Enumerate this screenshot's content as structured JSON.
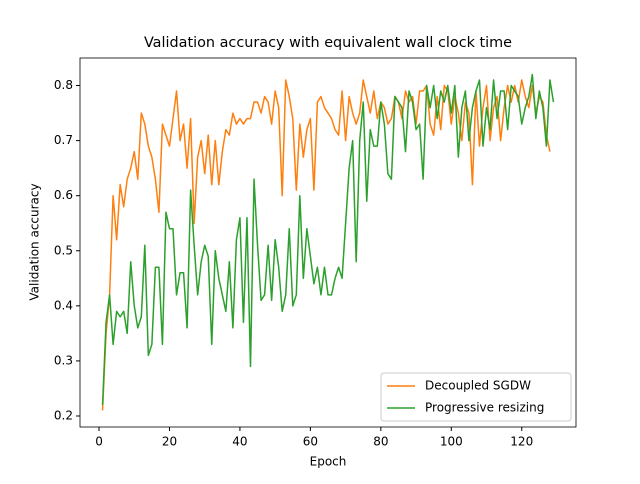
{
  "chart_data": {
    "type": "line",
    "title": "Validation accuracy with equivalent wall clock time",
    "x_label": "Epoch",
    "y_label": "Validation accuracy",
    "x": [
      1,
      2,
      3,
      4,
      5,
      6,
      7,
      8,
      9,
      10,
      11,
      12,
      13,
      14,
      15,
      16,
      17,
      18,
      19,
      20,
      21,
      22,
      23,
      24,
      25,
      26,
      27,
      28,
      29,
      30,
      31,
      32,
      33,
      34,
      35,
      36,
      37,
      38,
      39,
      40,
      41,
      42,
      43,
      44,
      45,
      46,
      47,
      48,
      49,
      50,
      51,
      52,
      53,
      54,
      55,
      56,
      57,
      58,
      59,
      60,
      61,
      62,
      63,
      64,
      65,
      66,
      67,
      68,
      69,
      70,
      71,
      72,
      73,
      74,
      75,
      76,
      77,
      78,
      79,
      80,
      81,
      82,
      83,
      84,
      85,
      86,
      87,
      88,
      89,
      90,
      91,
      92,
      93,
      94,
      95,
      96,
      97,
      98,
      99,
      100,
      101,
      102,
      103,
      104,
      105,
      106,
      107,
      108,
      109,
      110,
      111,
      112,
      113,
      114,
      115,
      116,
      117,
      118,
      119,
      120,
      121,
      122,
      123,
      124,
      125,
      126,
      127,
      128,
      129
    ],
    "series": [
      {
        "name": "Decoupled SGDW",
        "color": "#ff7f0e",
        "values": [
          0.21,
          0.35,
          0.42,
          0.6,
          0.52,
          0.62,
          0.58,
          0.63,
          0.65,
          0.68,
          0.63,
          0.75,
          0.73,
          0.69,
          0.67,
          0.63,
          0.57,
          0.73,
          0.71,
          0.69,
          0.74,
          0.79,
          0.7,
          0.73,
          0.65,
          0.74,
          0.55,
          0.67,
          0.7,
          0.64,
          0.71,
          0.62,
          0.7,
          0.62,
          0.68,
          0.72,
          0.71,
          0.75,
          0.73,
          0.74,
          0.73,
          0.74,
          0.74,
          0.77,
          0.77,
          0.75,
          0.78,
          0.77,
          0.73,
          0.79,
          0.76,
          0.6,
          0.81,
          0.78,
          0.74,
          0.61,
          0.73,
          0.67,
          0.72,
          0.74,
          0.61,
          0.77,
          0.78,
          0.76,
          0.75,
          0.74,
          0.72,
          0.71,
          0.79,
          0.7,
          0.78,
          0.75,
          0.73,
          0.75,
          0.81,
          0.78,
          0.75,
          0.79,
          0.74,
          0.77,
          0.76,
          0.73,
          0.74,
          0.78,
          0.77,
          0.74,
          0.79,
          0.77,
          0.78,
          0.73,
          0.79,
          0.79,
          0.8,
          0.73,
          0.71,
          0.78,
          0.72,
          0.8,
          0.79,
          0.73,
          0.78,
          0.75,
          0.7,
          0.77,
          0.75,
          0.62,
          0.79,
          0.69,
          0.76,
          0.8,
          0.7,
          0.76,
          0.78,
          0.7,
          0.76,
          0.8,
          0.77,
          0.8,
          0.77,
          0.81,
          0.78,
          0.76,
          0.8,
          0.75,
          0.78,
          0.77,
          0.71,
          0.68,
          null
        ]
      },
      {
        "name": "Progressive resizing",
        "color": "#2ca02c",
        "values": [
          0.22,
          0.37,
          0.42,
          0.33,
          0.39,
          0.38,
          0.39,
          0.35,
          0.48,
          0.4,
          0.36,
          0.38,
          0.51,
          0.31,
          0.33,
          0.47,
          0.47,
          0.33,
          0.57,
          0.54,
          0.54,
          0.42,
          0.46,
          0.46,
          0.36,
          0.61,
          0.51,
          0.42,
          0.48,
          0.51,
          0.49,
          0.33,
          0.5,
          0.45,
          0.42,
          0.39,
          0.48,
          0.36,
          0.52,
          0.56,
          0.37,
          0.56,
          0.29,
          0.63,
          0.51,
          0.41,
          0.42,
          0.51,
          0.41,
          0.52,
          0.47,
          0.39,
          0.42,
          0.54,
          0.4,
          0.42,
          0.6,
          0.45,
          0.54,
          0.49,
          0.44,
          0.47,
          0.42,
          0.47,
          0.42,
          0.42,
          0.45,
          0.47,
          0.45,
          0.55,
          0.65,
          0.7,
          0.48,
          0.7,
          0.77,
          0.59,
          0.72,
          0.69,
          0.69,
          0.77,
          0.73,
          0.64,
          0.63,
          0.78,
          0.77,
          0.76,
          0.68,
          0.79,
          0.77,
          0.72,
          0.73,
          0.63,
          0.8,
          0.76,
          0.8,
          0.74,
          0.79,
          0.77,
          0.8,
          0.75,
          0.8,
          0.67,
          0.76,
          0.79,
          0.7,
          0.76,
          0.79,
          0.81,
          0.69,
          0.76,
          0.72,
          0.81,
          0.74,
          0.79,
          0.79,
          0.72,
          0.8,
          0.79,
          0.78,
          0.73,
          0.76,
          0.78,
          0.82,
          0.74,
          0.79,
          0.76,
          0.69,
          0.81,
          0.77
        ]
      }
    ],
    "xlim": [
      -5.4,
      135.4
    ],
    "ylim": [
      0.18,
      0.85
    ],
    "xticks": [
      0,
      20,
      40,
      60,
      80,
      100,
      120
    ],
    "yticks": [
      0.2,
      0.3,
      0.4,
      0.5,
      0.6,
      0.7,
      0.8
    ],
    "legend": "lower right"
  }
}
